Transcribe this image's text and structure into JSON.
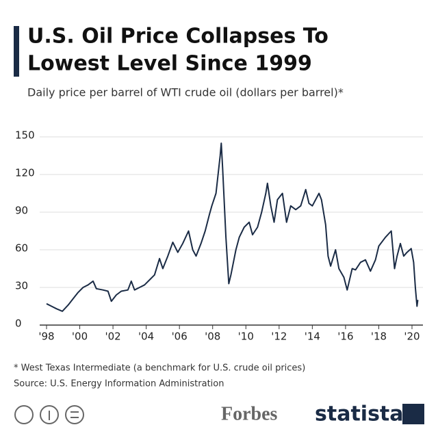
{
  "chart_data": {
    "type": "line",
    "title": [
      "U.S. Oil Price Collapses To",
      "Lowest Level Since 1999"
    ],
    "subtitle": "Daily price per barrel of WTI crude oil (dollars per barrel)*",
    "footnote": "* West Texas Intermediate (a benchmark for U.S. crude oil prices)",
    "source": "Source: U.S. Energy Information Administration",
    "brands": [
      "Forbes",
      "statista"
    ],
    "xlim": [
      1998,
      2020
    ],
    "xticks": [
      {
        "value": 1998,
        "label": "'98"
      },
      {
        "value": 2000,
        "label": "'00"
      },
      {
        "value": 2002,
        "label": "'02"
      },
      {
        "value": 2004,
        "label": "'04"
      },
      {
        "value": 2006,
        "label": "'06"
      },
      {
        "value": 2008,
        "label": "'08"
      },
      {
        "value": 2010,
        "label": "'10"
      },
      {
        "value": 2012,
        "label": "'12"
      },
      {
        "value": 2014,
        "label": "'14"
      },
      {
        "value": 2016,
        "label": "'16"
      },
      {
        "value": 2018,
        "label": "'18"
      },
      {
        "value": 2020,
        "label": "'20"
      }
    ],
    "ylim": [
      0,
      150
    ],
    "yticks": [
      0,
      30,
      60,
      90,
      120,
      150
    ],
    "grid": true,
    "x": [
      1998.0,
      1998.3,
      1998.6,
      1998.95,
      1999.3,
      1999.6,
      1999.9,
      2000.2,
      2000.5,
      2000.8,
      2001.0,
      2001.4,
      2001.7,
      2001.9,
      2002.2,
      2002.5,
      2002.9,
      2003.1,
      2003.3,
      2003.6,
      2003.9,
      2004.2,
      2004.5,
      2004.8,
      2005.0,
      2005.3,
      2005.6,
      2005.9,
      2006.2,
      2006.55,
      2006.8,
      2007.0,
      2007.3,
      2007.55,
      2007.8,
      2007.95,
      2008.2,
      2008.45,
      2008.52,
      2008.6,
      2008.8,
      2008.97,
      2009.1,
      2009.4,
      2009.6,
      2009.9,
      2010.2,
      2010.4,
      2010.7,
      2010.95,
      2011.2,
      2011.3,
      2011.5,
      2011.7,
      2011.9,
      2012.2,
      2012.45,
      2012.7,
      2013.0,
      2013.3,
      2013.6,
      2013.8,
      2014.0,
      2014.4,
      2014.55,
      2014.8,
      2014.95,
      2015.1,
      2015.4,
      2015.6,
      2015.9,
      2016.1,
      2016.4,
      2016.6,
      2016.9,
      2017.2,
      2017.5,
      2017.8,
      2018.0,
      2018.4,
      2018.75,
      2018.95,
      2019.1,
      2019.3,
      2019.5,
      2019.7,
      2019.95,
      2020.1,
      2020.2,
      2020.3,
      2020.35
    ],
    "series": [
      {
        "color": "#1a2b45",
        "values": [
          17,
          15,
          13,
          11,
          16,
          21,
          26,
          30,
          32,
          35,
          29,
          28,
          27,
          19,
          24,
          27,
          28,
          35,
          28,
          30,
          32,
          36,
          40,
          53,
          45,
          55,
          66,
          58,
          65,
          75,
          60,
          55,
          65,
          75,
          88,
          95,
          105,
          135,
          145,
          125,
          70,
          33,
          40,
          60,
          70,
          78,
          82,
          72,
          78,
          90,
          105,
          113,
          95,
          82,
          100,
          105,
          82,
          95,
          92,
          95,
          108,
          97,
          95,
          105,
          100,
          80,
          55,
          47,
          60,
          45,
          38,
          28,
          45,
          44,
          50,
          52,
          43,
          52,
          63,
          70,
          75,
          45,
          55,
          65,
          55,
          58,
          61,
          50,
          30,
          15,
          20
        ]
      }
    ]
  }
}
